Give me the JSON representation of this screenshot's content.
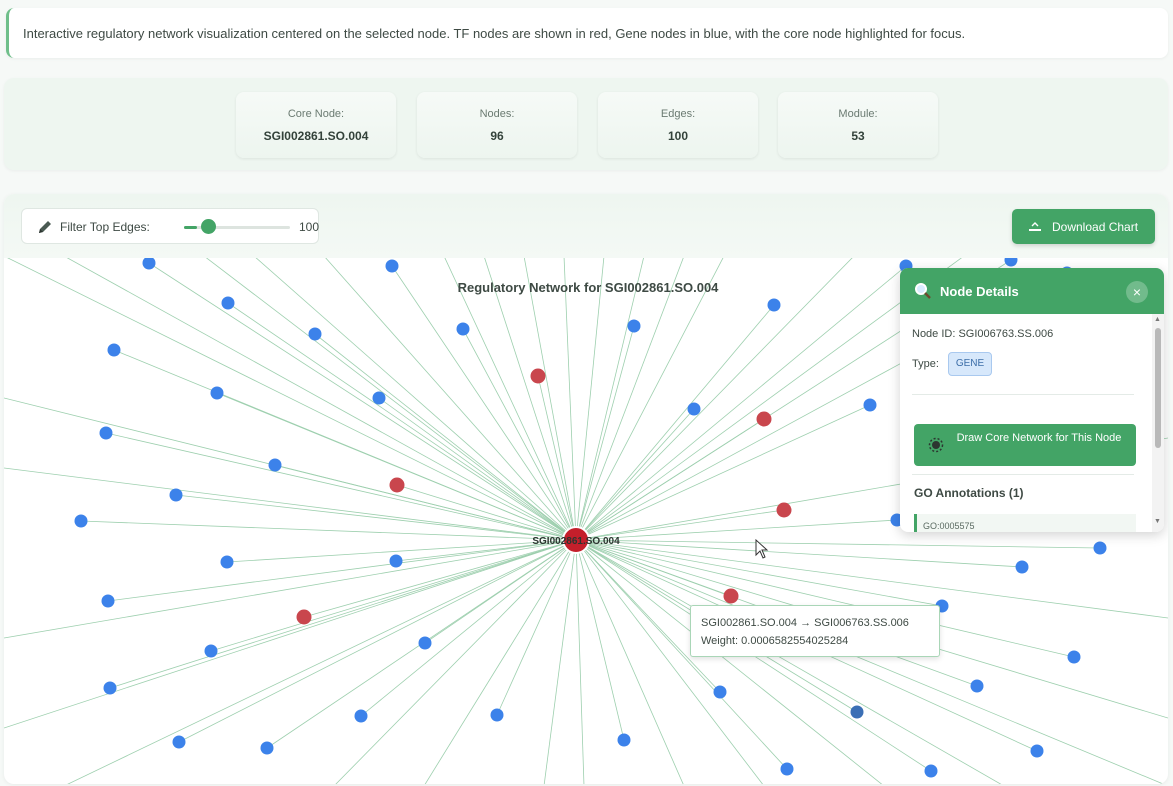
{
  "description": "Interactive regulatory network visualization centered on the selected node. TF nodes are shown in red, Gene nodes in blue, with the core node highlighted for focus.",
  "stats": [
    {
      "label": "Core Node:",
      "value": "SGI002861.SO.004"
    },
    {
      "label": "Nodes:",
      "value": "96"
    },
    {
      "label": "Edges:",
      "value": "100"
    },
    {
      "label": "Module:",
      "value": "53"
    }
  ],
  "toolbar": {
    "filter_label": "Filter Top Edges:",
    "filter_value": "100",
    "filter_fraction": 0.12,
    "download_label": "Download Chart"
  },
  "graph": {
    "title": "Regulatory Network for SGI002861.SO.004",
    "core_label": "SGI002861.SO.004",
    "colors": {
      "tf": "#c9464d",
      "gene": "#3c82ea",
      "gene_dark": "#3b6fb5",
      "core": "#c41f2b",
      "edge": "#9dcfae"
    }
  },
  "node_details": {
    "title": "Node Details",
    "close_glyph": "×",
    "node_id": "Node ID: SGI006763.SS.006",
    "type_label": "Type:",
    "type_value": "GENE",
    "button_label": "Draw Core Network for This Node",
    "go_heading": "GO Annotations (1)",
    "go_item": "GO:0005575"
  },
  "tooltip": {
    "line1": "SGI002861.SO.004 → SGI006763.SS.006",
    "line2": "Weight: 0.0006582554025284"
  },
  "icons": [
    "pencil-icon",
    "download-icon",
    "magnifier-icon",
    "network-icon",
    "close-icon",
    "cursor-icon"
  ]
}
